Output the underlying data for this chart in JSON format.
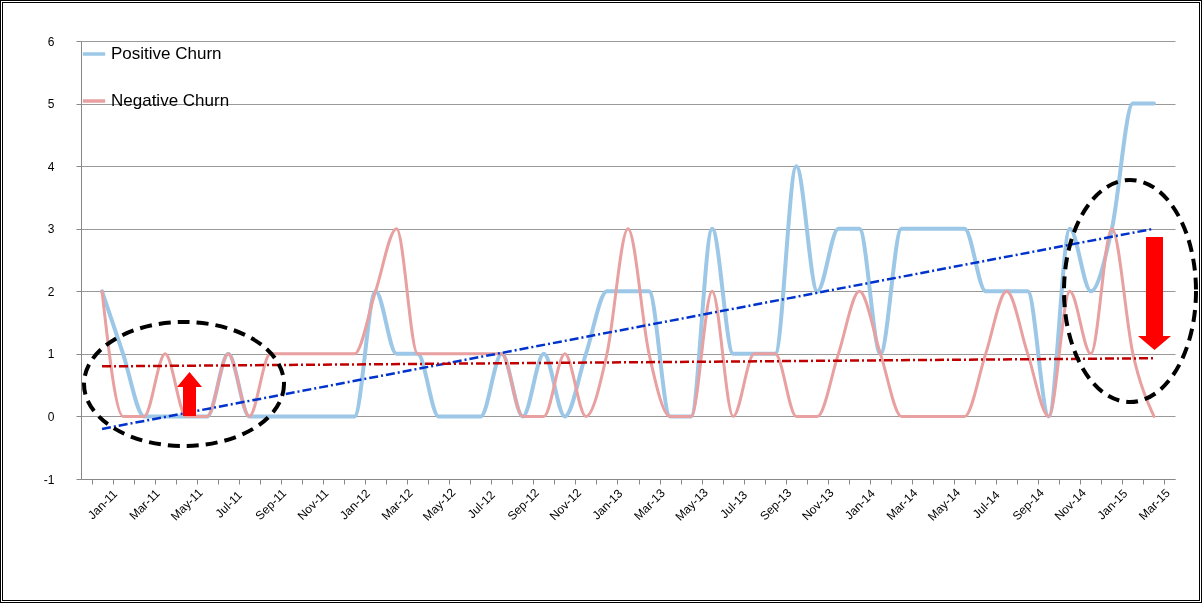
{
  "chart_data": {
    "type": "line",
    "categories": [
      "Jan-11",
      null,
      "Mar-11",
      null,
      "May-11",
      null,
      "Jul-11",
      null,
      "Sep-11",
      null,
      "Nov-11",
      null,
      "Jan-12",
      null,
      "Mar-12",
      null,
      "May-12",
      null,
      "Jul-12",
      null,
      "Sep-12",
      null,
      "Nov-12",
      null,
      "Jan-13",
      null,
      "Mar-13",
      null,
      "May-13",
      null,
      "Jul-13",
      null,
      "Sep-13",
      null,
      "Nov-13",
      null,
      "Jan-14",
      null,
      "Mar-14",
      null,
      "May-14",
      null,
      "Jul-14",
      null,
      "Sep-14",
      null,
      "Nov-14",
      null,
      "Jan-15",
      null,
      "Mar-15"
    ],
    "series": [
      {
        "name": "Positive Churn",
        "color": "#9cc7e6",
        "values": [
          2,
          1,
          0,
          0,
          0,
          0,
          1,
          0,
          0,
          0,
          0,
          0,
          0,
          2,
          1,
          1,
          0,
          0,
          0,
          1,
          0,
          1,
          0,
          1,
          2,
          2,
          2,
          0,
          0,
          3,
          1,
          1,
          1,
          4,
          2,
          3,
          3,
          1,
          3,
          3,
          3,
          3,
          2,
          2,
          2,
          0,
          3,
          2,
          3,
          5,
          5
        ]
      },
      {
        "name": "Negative Churn",
        "color": "#e8a0a0",
        "values": [
          2,
          0,
          0,
          1,
          0,
          0,
          1,
          0,
          1,
          1,
          1,
          1,
          1,
          2,
          3,
          1,
          1,
          1,
          1,
          1,
          0,
          0,
          1,
          0,
          1,
          3,
          1,
          0,
          0,
          2,
          0,
          1,
          1,
          0,
          0,
          1,
          2,
          1,
          0,
          0,
          0,
          0,
          1,
          2,
          1,
          0,
          2,
          1,
          3,
          1,
          0
        ]
      },
      {
        "type": "line",
        "color": "#0033cc",
        "line_style": "dashed",
        "x": [
          "Jan-11",
          "Mar-15"
        ],
        "values": [
          -0.2,
          3.0
        ]
      },
      {
        "type": "line",
        "color": "#c00000",
        "line_style": "dashed",
        "x": [
          "Jan-11",
          "Mar-15"
        ],
        "values": [
          0.8,
          0.93
        ]
      }
    ],
    "ylim": [
      -1,
      6
    ],
    "yticks": [
      -1,
      0,
      1,
      2,
      3,
      4,
      5,
      6
    ],
    "grid": "y",
    "legend": "top left"
  }
}
